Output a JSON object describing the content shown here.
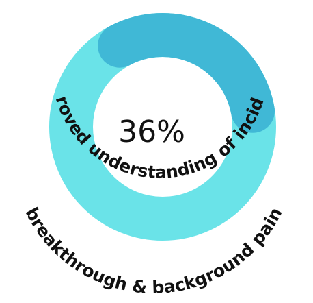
{
  "chart_data": {
    "type": "pie",
    "style": "donut",
    "value_percent": 36,
    "center_label": "36%",
    "caption_line_1": "Improved understanding of incident,",
    "caption_line_2": "breakthrough & background pain",
    "colors": {
      "track": "#6ae3e8",
      "value": "#40b8d6"
    }
  }
}
